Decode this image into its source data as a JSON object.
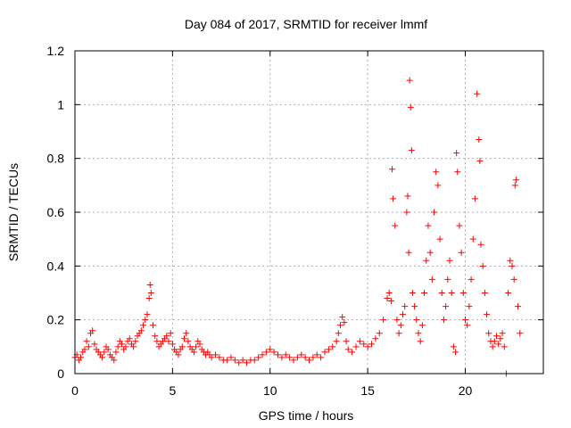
{
  "chart_data": {
    "type": "scatter",
    "title": "Day 084 of 2017, SRMTID for receiver lmmf",
    "xlabel": "GPS time / hours",
    "ylabel": "SRMTID / TECUs",
    "xlim": [
      0,
      24
    ],
    "ylim": [
      0,
      1.2
    ],
    "xticks": [
      0,
      5,
      10,
      15,
      20
    ],
    "xtick_labels": [
      "0",
      "5",
      "10",
      "15",
      "20"
    ],
    "yticks": [
      0,
      0.2,
      0.4,
      0.6,
      0.8,
      1.0,
      1.2
    ],
    "ytick_labels": [
      "0",
      "0.2",
      "0.4",
      "0.6",
      "0.8",
      "1",
      "1.2"
    ],
    "grid": true,
    "marker": "+",
    "color": "#ff0000",
    "series": [
      {
        "name": "SRMTID",
        "points": [
          [
            0.0,
            0.06
          ],
          [
            0.1,
            0.07
          ],
          [
            0.2,
            0.05
          ],
          [
            0.3,
            0.06
          ],
          [
            0.4,
            0.08
          ],
          [
            0.5,
            0.09
          ],
          [
            0.6,
            0.12
          ],
          [
            0.7,
            0.1
          ],
          [
            0.8,
            0.15
          ],
          [
            0.9,
            0.16
          ],
          [
            1.0,
            0.11
          ],
          [
            1.1,
            0.09
          ],
          [
            1.2,
            0.08
          ],
          [
            1.3,
            0.07
          ],
          [
            1.4,
            0.06
          ],
          [
            1.5,
            0.08
          ],
          [
            1.6,
            0.1
          ],
          [
            1.7,
            0.09
          ],
          [
            1.8,
            0.07
          ],
          [
            1.9,
            0.06
          ],
          [
            2.0,
            0.05
          ],
          [
            2.1,
            0.08
          ],
          [
            2.2,
            0.1
          ],
          [
            2.3,
            0.12
          ],
          [
            2.4,
            0.11
          ],
          [
            2.5,
            0.09
          ],
          [
            2.6,
            0.1
          ],
          [
            2.7,
            0.12
          ],
          [
            2.8,
            0.13
          ],
          [
            2.9,
            0.11
          ],
          [
            3.0,
            0.1
          ],
          [
            3.1,
            0.12
          ],
          [
            3.2,
            0.14
          ],
          [
            3.3,
            0.15
          ],
          [
            3.4,
            0.16
          ],
          [
            3.5,
            0.18
          ],
          [
            3.6,
            0.2
          ],
          [
            3.7,
            0.22
          ],
          [
            3.8,
            0.28
          ],
          [
            3.85,
            0.33
          ],
          [
            3.9,
            0.3
          ],
          [
            4.0,
            0.18
          ],
          [
            4.1,
            0.14
          ],
          [
            4.2,
            0.12
          ],
          [
            4.3,
            0.1
          ],
          [
            4.4,
            0.11
          ],
          [
            4.5,
            0.12
          ],
          [
            4.6,
            0.13
          ],
          [
            4.7,
            0.14
          ],
          [
            4.8,
            0.12
          ],
          [
            4.9,
            0.15
          ],
          [
            5.0,
            0.11
          ],
          [
            5.1,
            0.09
          ],
          [
            5.2,
            0.08
          ],
          [
            5.3,
            0.07
          ],
          [
            5.4,
            0.09
          ],
          [
            5.5,
            0.1
          ],
          [
            5.6,
            0.13
          ],
          [
            5.7,
            0.15
          ],
          [
            5.8,
            0.12
          ],
          [
            5.9,
            0.1
          ],
          [
            6.0,
            0.09
          ],
          [
            6.1,
            0.08
          ],
          [
            6.2,
            0.1
          ],
          [
            6.3,
            0.12
          ],
          [
            6.4,
            0.11
          ],
          [
            6.5,
            0.09
          ],
          [
            6.6,
            0.08
          ],
          [
            6.7,
            0.07
          ],
          [
            6.8,
            0.08
          ],
          [
            6.9,
            0.07
          ],
          [
            7.0,
            0.06
          ],
          [
            7.2,
            0.07
          ],
          [
            7.4,
            0.06
          ],
          [
            7.6,
            0.05
          ],
          [
            7.8,
            0.05
          ],
          [
            8.0,
            0.06
          ],
          [
            8.2,
            0.05
          ],
          [
            8.4,
            0.04
          ],
          [
            8.6,
            0.05
          ],
          [
            8.8,
            0.04
          ],
          [
            9.0,
            0.05
          ],
          [
            9.2,
            0.05
          ],
          [
            9.4,
            0.06
          ],
          [
            9.6,
            0.07
          ],
          [
            9.8,
            0.08
          ],
          [
            10.0,
            0.09
          ],
          [
            10.2,
            0.08
          ],
          [
            10.4,
            0.07
          ],
          [
            10.6,
            0.06
          ],
          [
            10.8,
            0.07
          ],
          [
            11.0,
            0.06
          ],
          [
            11.2,
            0.05
          ],
          [
            11.4,
            0.06
          ],
          [
            11.6,
            0.07
          ],
          [
            11.8,
            0.06
          ],
          [
            12.0,
            0.05
          ],
          [
            12.2,
            0.06
          ],
          [
            12.4,
            0.07
          ],
          [
            12.6,
            0.06
          ],
          [
            12.8,
            0.08
          ],
          [
            13.0,
            0.09
          ],
          [
            13.2,
            0.1
          ],
          [
            13.4,
            0.12
          ],
          [
            13.5,
            0.15
          ],
          [
            13.6,
            0.18
          ],
          [
            13.7,
            0.21
          ],
          [
            13.8,
            0.19
          ],
          [
            13.9,
            0.12
          ],
          [
            14.0,
            0.09
          ],
          [
            14.2,
            0.08
          ],
          [
            14.4,
            0.1
          ],
          [
            14.6,
            0.12
          ],
          [
            14.8,
            0.11
          ],
          [
            15.0,
            0.1
          ],
          [
            15.2,
            0.11
          ],
          [
            15.4,
            0.13
          ],
          [
            15.6,
            0.15
          ],
          [
            15.8,
            0.2
          ],
          [
            16.0,
            0.28
          ],
          [
            16.1,
            0.3
          ],
          [
            16.2,
            0.27
          ],
          [
            16.25,
            0.76
          ],
          [
            16.3,
            0.65
          ],
          [
            16.4,
            0.55
          ],
          [
            16.5,
            0.2
          ],
          [
            16.6,
            0.15
          ],
          [
            16.7,
            0.18
          ],
          [
            16.8,
            0.22
          ],
          [
            16.9,
            0.25
          ],
          [
            17.0,
            0.6
          ],
          [
            17.05,
            0.66
          ],
          [
            17.1,
            0.45
          ],
          [
            17.15,
            1.09
          ],
          [
            17.2,
            0.99
          ],
          [
            17.25,
            0.83
          ],
          [
            17.3,
            0.3
          ],
          [
            17.4,
            0.25
          ],
          [
            17.5,
            0.2
          ],
          [
            17.6,
            0.15
          ],
          [
            17.7,
            0.12
          ],
          [
            17.8,
            0.18
          ],
          [
            17.9,
            0.3
          ],
          [
            18.0,
            0.42
          ],
          [
            18.1,
            0.55
          ],
          [
            18.2,
            0.45
          ],
          [
            18.3,
            0.35
          ],
          [
            18.4,
            0.6
          ],
          [
            18.5,
            0.75
          ],
          [
            18.6,
            0.7
          ],
          [
            18.7,
            0.5
          ],
          [
            18.8,
            0.3
          ],
          [
            18.9,
            0.2
          ],
          [
            19.0,
            0.25
          ],
          [
            19.1,
            0.35
          ],
          [
            19.2,
            0.42
          ],
          [
            19.3,
            0.3
          ],
          [
            19.4,
            0.1
          ],
          [
            19.5,
            0.08
          ],
          [
            19.55,
            0.82
          ],
          [
            19.6,
            0.75
          ],
          [
            19.7,
            0.55
          ],
          [
            19.8,
            0.45
          ],
          [
            19.9,
            0.3
          ],
          [
            20.0,
            0.2
          ],
          [
            20.1,
            0.18
          ],
          [
            20.2,
            0.25
          ],
          [
            20.3,
            0.35
          ],
          [
            20.4,
            0.5
          ],
          [
            20.5,
            0.65
          ],
          [
            20.6,
            1.04
          ],
          [
            20.7,
            0.87
          ],
          [
            20.75,
            0.79
          ],
          [
            20.8,
            0.48
          ],
          [
            20.9,
            0.4
          ],
          [
            21.0,
            0.3
          ],
          [
            21.1,
            0.22
          ],
          [
            21.2,
            0.15
          ],
          [
            21.3,
            0.12
          ],
          [
            21.4,
            0.1
          ],
          [
            21.5,
            0.12
          ],
          [
            21.6,
            0.14
          ],
          [
            21.7,
            0.11
          ],
          [
            21.8,
            0.13
          ],
          [
            21.9,
            0.15
          ],
          [
            22.0,
            0.1
          ],
          [
            22.1,
            0.0
          ],
          [
            22.2,
            0.3
          ],
          [
            22.3,
            0.42
          ],
          [
            22.4,
            0.4
          ],
          [
            22.5,
            0.35
          ],
          [
            22.55,
            0.7
          ],
          [
            22.6,
            0.72
          ],
          [
            22.7,
            0.25
          ],
          [
            22.8,
            0.15
          ]
        ]
      }
    ]
  }
}
